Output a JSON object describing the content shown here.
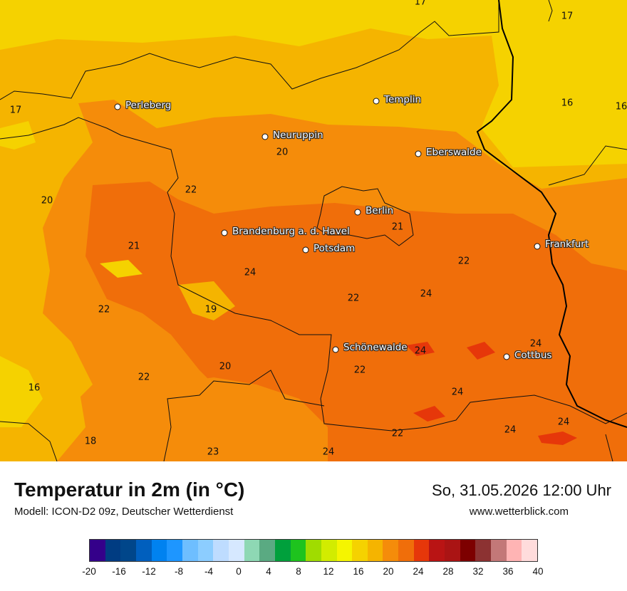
{
  "title": "Temperatur in 2m (in °C)",
  "model": "Modell: ICON-D2 09z, Deutscher Wetterdienst",
  "datetime": "So, 31.05.2026 12:00 Uhr",
  "site": "www.wetterblick.com",
  "cities": [
    {
      "name": "Perleberg"
    },
    {
      "name": "Templin"
    },
    {
      "name": "Neuruppin"
    },
    {
      "name": "Eberswalde"
    },
    {
      "name": "Berlin"
    },
    {
      "name": "Brandenburg a. d. Havel"
    },
    {
      "name": "Potsdam"
    },
    {
      "name": "Frankfurt"
    },
    {
      "name": "Schönewalde"
    },
    {
      "name": "Cottbus"
    }
  ],
  "temperature_values": [
    "17",
    "17",
    "16",
    "16",
    "17",
    "20",
    "22",
    "20",
    "21",
    "22",
    "21",
    "24",
    "24",
    "22",
    "19",
    "22",
    "24",
    "24",
    "24",
    "24",
    "22",
    "20",
    "16",
    "22",
    "24",
    "18",
    "23",
    "24",
    "22",
    "24",
    "24"
  ],
  "legend": {
    "ticks": [
      "-20",
      "-16",
      "-12",
      "-8",
      "-4",
      "0",
      "4",
      "8",
      "12",
      "16",
      "20",
      "24",
      "28",
      "32",
      "36",
      "40"
    ],
    "colors": [
      "#34008a",
      "#003c82",
      "#00468a",
      "#005fbe",
      "#0082f0",
      "#1e96ff",
      "#6ebeff",
      "#8ccdff",
      "#bedcff",
      "#d6e8ff",
      "#8ed8b4",
      "#5aaa82",
      "#00a03c",
      "#1ec31e",
      "#a0dc00",
      "#d2ec00",
      "#f5f500",
      "#f5d200",
      "#f5b400",
      "#f58c0a",
      "#f06e0a",
      "#e6370a",
      "#b91414",
      "#aa1414",
      "#7d0000",
      "#8c3232",
      "#c37878",
      "#ffb4b4",
      "#ffdcdc"
    ]
  }
}
